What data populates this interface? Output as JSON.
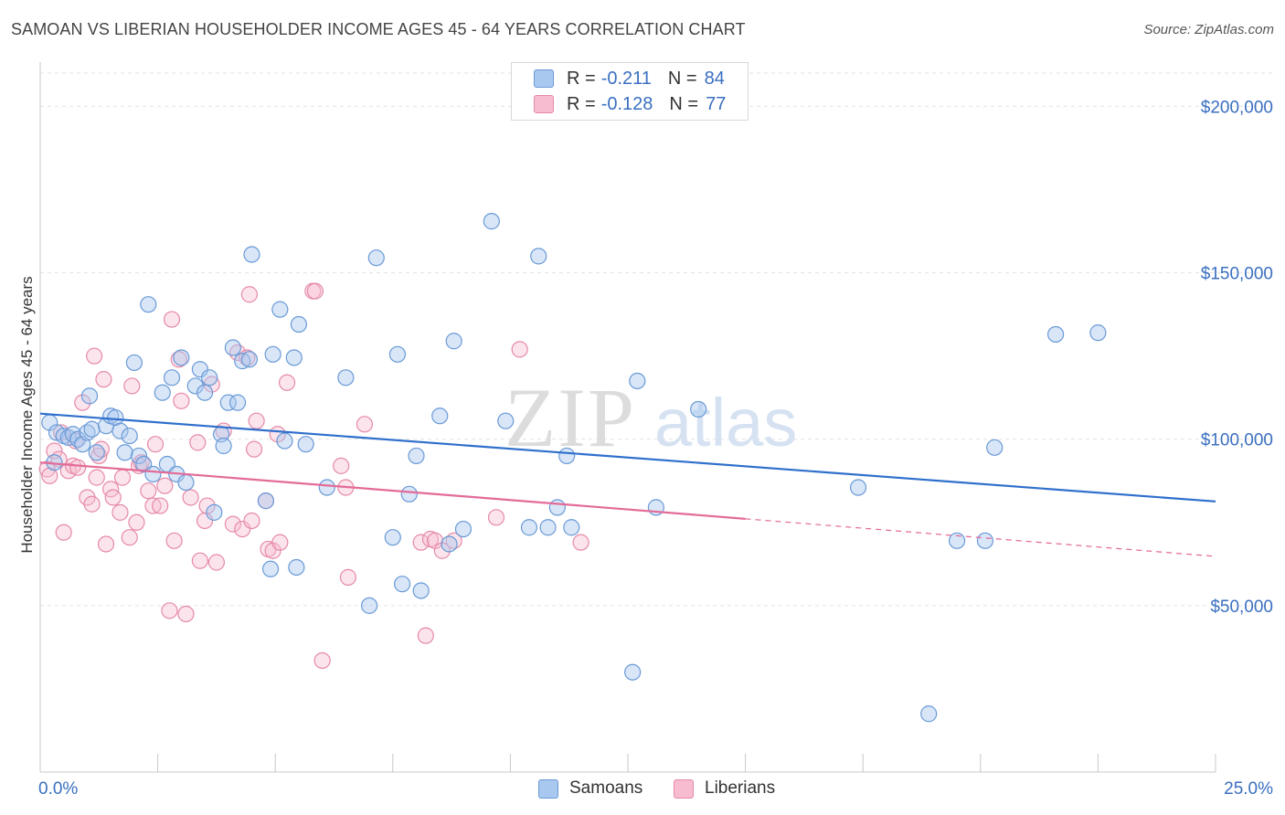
{
  "title": "SAMOAN VS LIBERIAN HOUSEHOLDER INCOME AGES 45 - 64 YEARS CORRELATION CHART",
  "source": "Source: ZipAtlas.com",
  "watermark": {
    "part1": "ZIP",
    "part2": "atlas"
  },
  "legend": {
    "rows": [
      {
        "r_label": "R =",
        "r_value": "-0.211",
        "n_label": "N =",
        "n_value": "84",
        "color": "#a9c8f0",
        "border": "#6a9ad6"
      },
      {
        "r_label": "R =",
        "r_value": "-0.128",
        "n_label": "N =",
        "n_value": "77",
        "color": "#f7bcd0",
        "border": "#e58aa8"
      }
    ]
  },
  "bottom_legend": [
    {
      "label": "Samoans",
      "color": "#a9c8f0",
      "border": "#6a9ad6"
    },
    {
      "label": "Liberians",
      "color": "#f7bcd0",
      "border": "#e58aa8"
    }
  ],
  "colors": {
    "samoan_line": "#2f6fcc",
    "liberian_line": "#e36b98",
    "tick_text": "#3a6fc0",
    "grid": "#e3e3e3"
  },
  "chart_data": {
    "type": "scatter",
    "title": "SAMOAN VS LIBERIAN HOUSEHOLDER INCOME AGES 45 - 64 YEARS CORRELATION CHART",
    "xlabel": "",
    "ylabel": "Householder Income Ages 45 - 64 years",
    "xlim": [
      0,
      25
    ],
    "ylim": [
      0,
      210000
    ],
    "x_tick_labels": [
      {
        "value": 0,
        "label": "0.0%"
      },
      {
        "value": 25,
        "label": "25.0%"
      }
    ],
    "y_ticks": [
      {
        "value": 50000,
        "label": "$50,000"
      },
      {
        "value": 100000,
        "label": "$100,000"
      },
      {
        "value": 150000,
        "label": "$150,000"
      },
      {
        "value": 200000,
        "label": "$200,000"
      }
    ],
    "grid": true,
    "legend_position": "top-center",
    "series": [
      {
        "name": "Samoans",
        "r": -0.211,
        "n": 84,
        "trend": {
          "x0": 0,
          "y0": 107700,
          "x1": 25,
          "y1": 81300,
          "solid_until": 25
        },
        "points": [
          [
            0.2,
            105000
          ],
          [
            0.3,
            93000
          ],
          [
            0.35,
            102000
          ],
          [
            0.5,
            101000
          ],
          [
            0.6,
            100500
          ],
          [
            0.7,
            101500
          ],
          [
            0.8,
            100000
          ],
          [
            0.9,
            98500
          ],
          [
            1.0,
            102000
          ],
          [
            1.05,
            113000
          ],
          [
            1.1,
            103000
          ],
          [
            1.2,
            96000
          ],
          [
            1.4,
            104000
          ],
          [
            1.5,
            107000
          ],
          [
            1.6,
            106500
          ],
          [
            1.7,
            102500
          ],
          [
            1.8,
            96000
          ],
          [
            1.9,
            101000
          ],
          [
            2.0,
            123000
          ],
          [
            2.1,
            95000
          ],
          [
            2.2,
            92500
          ],
          [
            2.3,
            140500
          ],
          [
            2.4,
            89500
          ],
          [
            2.6,
            114000
          ],
          [
            2.7,
            92500
          ],
          [
            2.8,
            118500
          ],
          [
            2.9,
            89500
          ],
          [
            3.0,
            124500
          ],
          [
            3.1,
            87000
          ],
          [
            3.3,
            116000
          ],
          [
            3.4,
            121000
          ],
          [
            3.5,
            114000
          ],
          [
            3.6,
            118500
          ],
          [
            3.7,
            78000
          ],
          [
            3.85,
            101500
          ],
          [
            3.9,
            98000
          ],
          [
            4.0,
            111000
          ],
          [
            4.1,
            127500
          ],
          [
            4.2,
            111000
          ],
          [
            4.3,
            123500
          ],
          [
            4.45,
            124000
          ],
          [
            4.5,
            155500
          ],
          [
            4.8,
            81500
          ],
          [
            4.9,
            61000
          ],
          [
            4.95,
            125500
          ],
          [
            5.1,
            139000
          ],
          [
            5.2,
            99500
          ],
          [
            5.4,
            124500
          ],
          [
            5.45,
            61500
          ],
          [
            5.5,
            134500
          ],
          [
            5.65,
            98500
          ],
          [
            6.1,
            85500
          ],
          [
            6.5,
            118500
          ],
          [
            7.0,
            50000
          ],
          [
            7.15,
            154500
          ],
          [
            7.5,
            70500
          ],
          [
            7.6,
            125500
          ],
          [
            7.7,
            56500
          ],
          [
            7.85,
            83500
          ],
          [
            8.0,
            95000
          ],
          [
            8.1,
            54500
          ],
          [
            8.5,
            107000
          ],
          [
            8.7,
            68500
          ],
          [
            8.8,
            129500
          ],
          [
            9.0,
            73000
          ],
          [
            9.6,
            165500
          ],
          [
            9.9,
            105500
          ],
          [
            10.4,
            73500
          ],
          [
            10.6,
            155000
          ],
          [
            10.8,
            73500
          ],
          [
            11.0,
            79500
          ],
          [
            11.2,
            95000
          ],
          [
            11.3,
            73500
          ],
          [
            12.6,
            30000
          ],
          [
            12.7,
            117500
          ],
          [
            13.1,
            79500
          ],
          [
            14.0,
            109000
          ],
          [
            17.4,
            85500
          ],
          [
            18.9,
            17500
          ],
          [
            19.5,
            69500
          ],
          [
            20.1,
            69500
          ],
          [
            20.3,
            97500
          ],
          [
            21.6,
            131500
          ],
          [
            22.5,
            132000
          ]
        ]
      },
      {
        "name": "Liberians",
        "r": -0.128,
        "n": 77,
        "trend": {
          "x0": 0,
          "y0": 93000,
          "x1": 25,
          "y1": 64800,
          "solid_until": 15
        },
        "points": [
          [
            0.15,
            91000
          ],
          [
            0.2,
            89000
          ],
          [
            0.3,
            96500
          ],
          [
            0.4,
            94000
          ],
          [
            0.45,
            102000
          ],
          [
            0.5,
            72000
          ],
          [
            0.6,
            90500
          ],
          [
            0.7,
            92000
          ],
          [
            0.75,
            99500
          ],
          [
            0.8,
            91500
          ],
          [
            0.9,
            111000
          ],
          [
            1.0,
            82500
          ],
          [
            1.1,
            80500
          ],
          [
            1.15,
            125000
          ],
          [
            1.2,
            88500
          ],
          [
            1.25,
            95000
          ],
          [
            1.3,
            97000
          ],
          [
            1.35,
            118000
          ],
          [
            1.4,
            68500
          ],
          [
            1.5,
            85000
          ],
          [
            1.55,
            82500
          ],
          [
            1.7,
            78000
          ],
          [
            1.75,
            88500
          ],
          [
            1.9,
            70500
          ],
          [
            1.95,
            116000
          ],
          [
            2.05,
            75000
          ],
          [
            2.1,
            92000
          ],
          [
            2.15,
            93000
          ],
          [
            2.3,
            84500
          ],
          [
            2.4,
            80000
          ],
          [
            2.45,
            98500
          ],
          [
            2.55,
            80000
          ],
          [
            2.65,
            86000
          ],
          [
            2.75,
            48500
          ],
          [
            2.8,
            136000
          ],
          [
            2.85,
            69500
          ],
          [
            2.95,
            124000
          ],
          [
            3.0,
            111500
          ],
          [
            3.1,
            47500
          ],
          [
            3.2,
            82500
          ],
          [
            3.35,
            99000
          ],
          [
            3.4,
            63500
          ],
          [
            3.5,
            75500
          ],
          [
            3.55,
            80000
          ],
          [
            3.65,
            116500
          ],
          [
            3.75,
            63000
          ],
          [
            3.9,
            102500
          ],
          [
            4.1,
            74500
          ],
          [
            4.2,
            126000
          ],
          [
            4.3,
            73000
          ],
          [
            4.4,
            124500
          ],
          [
            4.45,
            143500
          ],
          [
            4.5,
            75500
          ],
          [
            4.55,
            97000
          ],
          [
            4.6,
            105500
          ],
          [
            4.8,
            81500
          ],
          [
            4.85,
            67000
          ],
          [
            4.95,
            66500
          ],
          [
            5.05,
            101500
          ],
          [
            5.1,
            69000
          ],
          [
            5.25,
            117000
          ],
          [
            5.8,
            144500
          ],
          [
            5.85,
            144500
          ],
          [
            6.0,
            33500
          ],
          [
            6.4,
            92000
          ],
          [
            6.5,
            85500
          ],
          [
            6.55,
            58500
          ],
          [
            6.9,
            104500
          ],
          [
            8.1,
            69000
          ],
          [
            8.2,
            41000
          ],
          [
            8.3,
            70000
          ],
          [
            8.4,
            69500
          ],
          [
            8.55,
            66500
          ],
          [
            9.7,
            76500
          ],
          [
            10.2,
            127000
          ],
          [
            11.5,
            69000
          ],
          [
            8.8,
            69500
          ]
        ]
      }
    ]
  }
}
